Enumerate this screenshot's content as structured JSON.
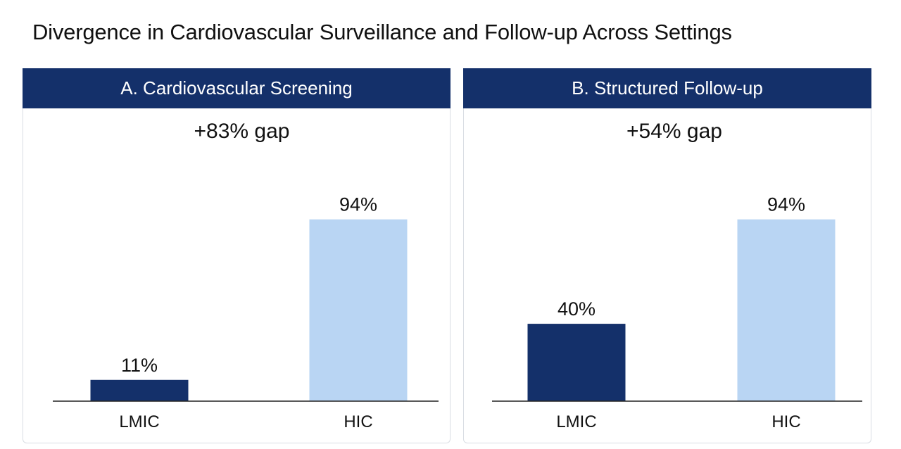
{
  "title": "Divergence in Cardiovascular Surveillance and Follow-up Across Settings",
  "colors": {
    "header": "#14306a",
    "lmic": "#14306a",
    "hic": "#b9d5f3",
    "axis": "#222222"
  },
  "chart_data": [
    {
      "type": "bar",
      "title": "A. Cardiovascular Screening",
      "annotation": "+83% gap",
      "categories": [
        "LMIC",
        "HIC"
      ],
      "values": [
        11,
        94
      ],
      "value_labels": [
        "11%",
        "94%"
      ],
      "ylim": [
        0,
        115
      ],
      "grid": false,
      "xlabel": "",
      "ylabel": ""
    },
    {
      "type": "bar",
      "title": "B. Structured Follow-up",
      "annotation": "+54% gap",
      "categories": [
        "LMIC",
        "HIC"
      ],
      "values": [
        40,
        94
      ],
      "value_labels": [
        "40%",
        "94%"
      ],
      "ylim": [
        0,
        115
      ],
      "grid": false,
      "xlabel": "",
      "ylabel": ""
    }
  ]
}
